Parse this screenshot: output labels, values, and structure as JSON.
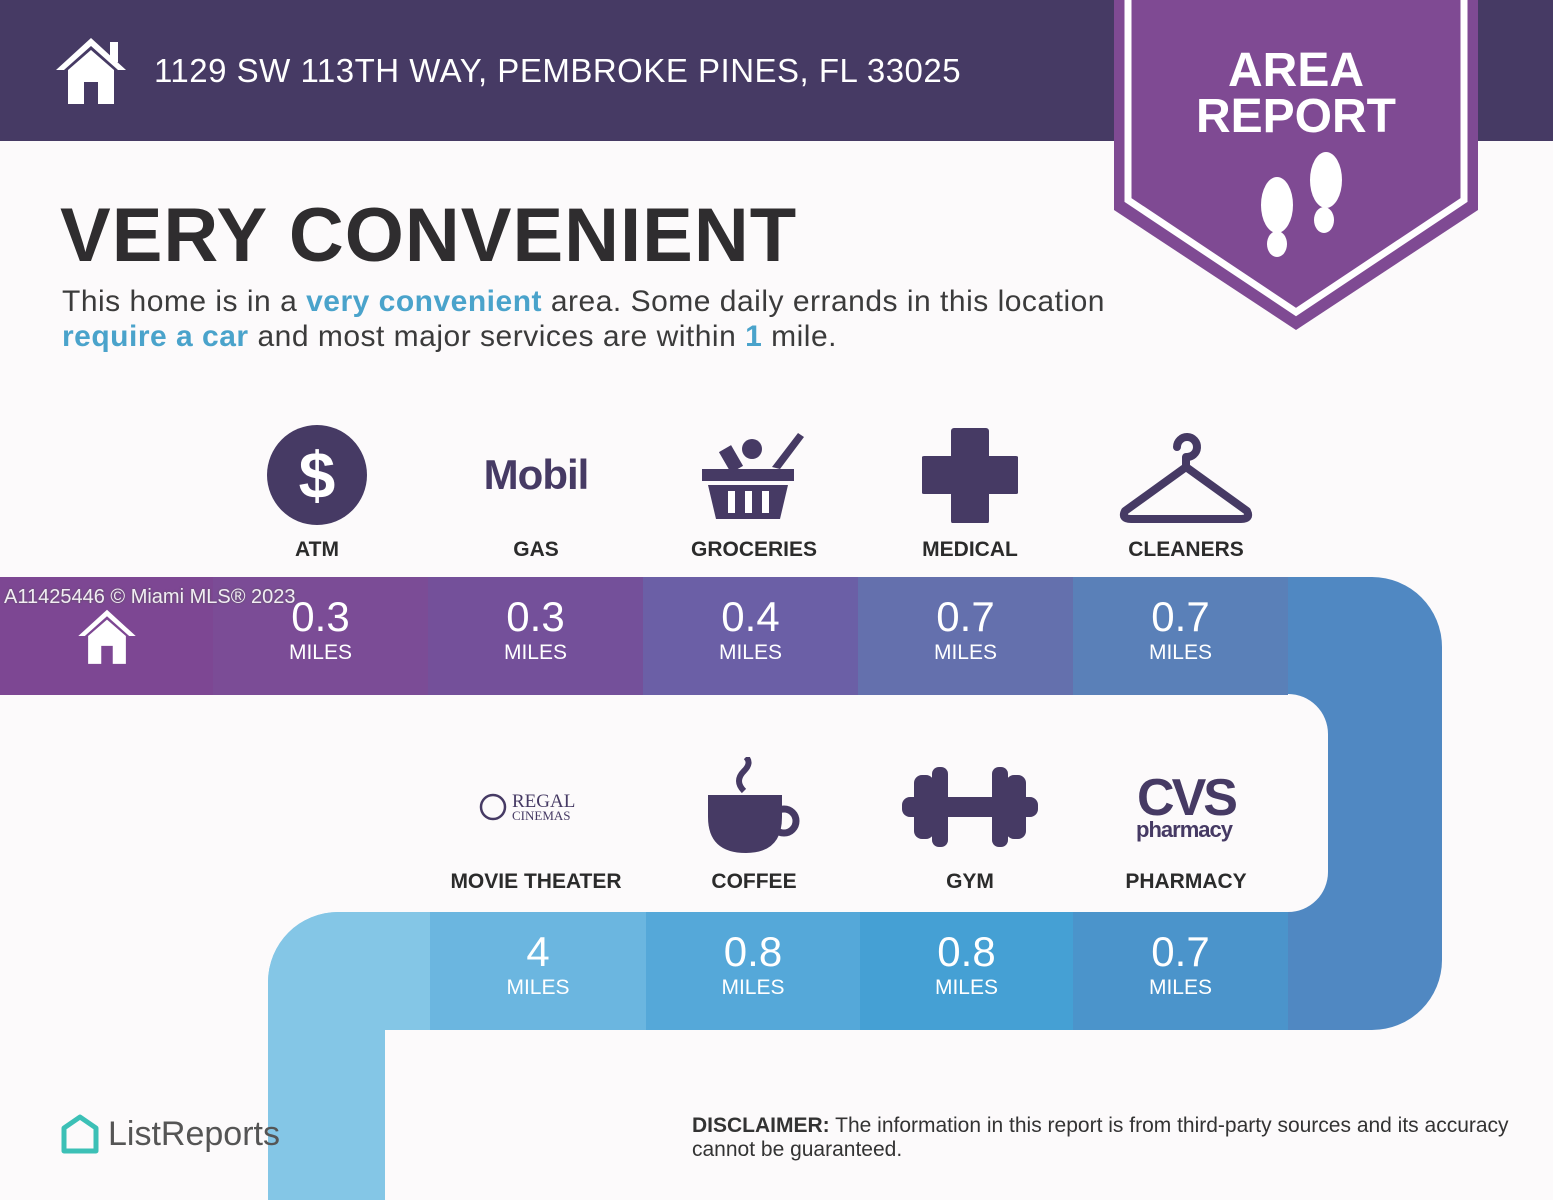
{
  "header": {
    "address": "1129 SW 113TH WAY, PEMBROKE PINES, FL 33025",
    "badge_line1": "AREA",
    "badge_line2": "REPORT"
  },
  "summary": {
    "title": "VERY CONVENIENT",
    "desc_1": "This home is in a ",
    "desc_hl1": "very convenient",
    "desc_2": " area. Some daily errands in this location ",
    "desc_hl2": "require a car",
    "desc_3": " and most major services are within ",
    "desc_hl3": "1",
    "desc_4": " mile."
  },
  "top_row": [
    {
      "label": "ATM",
      "icon": "dollar-icon",
      "distance": "0.3",
      "unit": "MILES"
    },
    {
      "label": "GAS",
      "icon": "mobil-logo",
      "logo_text": "Mobil",
      "distance": "0.3",
      "unit": "MILES"
    },
    {
      "label": "GROCERIES",
      "icon": "basket-icon",
      "distance": "0.4",
      "unit": "MILES"
    },
    {
      "label": "MEDICAL",
      "icon": "cross-icon",
      "distance": "0.7",
      "unit": "MILES"
    },
    {
      "label": "CLEANERS",
      "icon": "hanger-icon",
      "distance": "0.7",
      "unit": "MILES"
    }
  ],
  "bottom_row": [
    {
      "label": "MOVIE THEATER",
      "icon": "regal-logo",
      "logo_text": "REGAL CINEMAS",
      "distance": "4",
      "unit": "MILES"
    },
    {
      "label": "COFFEE",
      "icon": "coffee-icon",
      "distance": "0.8",
      "unit": "MILES"
    },
    {
      "label": "GYM",
      "icon": "dumbbell-icon",
      "distance": "0.8",
      "unit": "MILES"
    },
    {
      "label": "PHARMACY",
      "icon": "cvs-logo",
      "logo_text": "CVS pharmacy",
      "distance": "0.7",
      "unit": "MILES"
    }
  ],
  "watermark": "A11425446 © Miami MLS® 2023",
  "footer": {
    "brand": "ListReports",
    "disclaimer_bold": "DISCLAIMER:",
    "disclaimer": " The information in this report is from third-party sources and its accuracy cannot be guaranteed."
  },
  "colors": {
    "header": "#463a64",
    "badge": "#7f4a93",
    "icon": "#463a64",
    "accent": "#4aa3cb"
  }
}
